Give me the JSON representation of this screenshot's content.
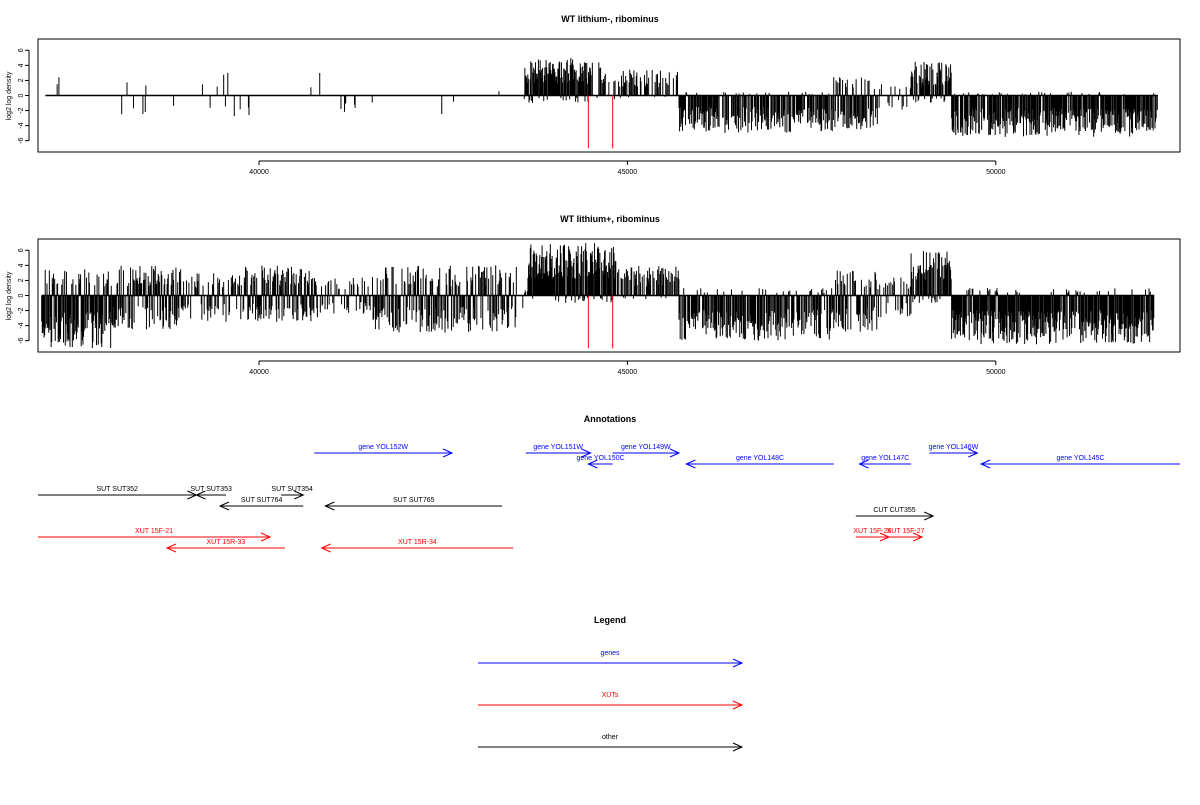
{
  "colors": {
    "gene": "#0000ff",
    "xut": "#ff0000",
    "other": "#000000",
    "marker": "#ff0000",
    "bars": "#000000"
  },
  "chart_data": [
    {
      "type": "bar",
      "title": "WT lithium-, ribominus",
      "ylabel": "log2 log density",
      "xlim": [
        37000,
        52500
      ],
      "ylim": [
        -7.5,
        7.5
      ],
      "xticks": [
        40000,
        45000,
        50000
      ],
      "yticks": [
        -6,
        -4,
        -2,
        0,
        2,
        4,
        6
      ],
      "marker_lines": [
        44470,
        44800
      ],
      "marker_depth": -7,
      "segments": [
        {
          "start": 37100,
          "end": 37300,
          "density": 0.1,
          "up": 3.0,
          "down": -1.5
        },
        {
          "start": 37300,
          "end": 38000,
          "density": 0.04,
          "up": 3.0,
          "down": -2.5
        },
        {
          "start": 38000,
          "end": 39000,
          "density": 0.05,
          "up": 3.0,
          "down": -3.0
        },
        {
          "start": 39000,
          "end": 40000,
          "density": 0.03,
          "up": 3.5,
          "down": -3.5
        },
        {
          "start": 40000,
          "end": 41000,
          "density": 0.03,
          "up": 3.0,
          "down": -2.5
        },
        {
          "start": 41000,
          "end": 42000,
          "density": 0.04,
          "up": 1.5,
          "down": -3.0
        },
        {
          "start": 42000,
          "end": 43000,
          "density": 0.03,
          "up": 1.0,
          "down": -2.5
        },
        {
          "start": 43000,
          "end": 43600,
          "density": 0.05,
          "up": 1.0,
          "down": -3.0
        },
        {
          "start": 43600,
          "end": 44500,
          "density": 1.0,
          "up": 5.0,
          "down": -1.0
        },
        {
          "start": 44500,
          "end": 44800,
          "density": 0.35,
          "up": 4.5,
          "down": -0.5
        },
        {
          "start": 44800,
          "end": 45700,
          "density": 0.5,
          "up": 3.5,
          "down": -0.5
        },
        {
          "start": 45700,
          "end": 47800,
          "density": 0.75,
          "up": 0.5,
          "down": -5.0
        },
        {
          "start": 47800,
          "end": 48400,
          "density": 0.8,
          "up": 2.5,
          "down": -4.5
        },
        {
          "start": 48400,
          "end": 48850,
          "density": 0.3,
          "up": 1.5,
          "down": -2.0
        },
        {
          "start": 48850,
          "end": 49400,
          "density": 0.9,
          "up": 4.5,
          "down": -1.0
        },
        {
          "start": 49400,
          "end": 52200,
          "density": 0.9,
          "up": 0.5,
          "down": -5.5
        }
      ]
    },
    {
      "type": "bar",
      "title": "WT lithium+, ribominus",
      "ylabel": "log2 log density",
      "xlim": [
        37000,
        52500
      ],
      "ylim": [
        -7.5,
        7.5
      ],
      "xticks": [
        40000,
        45000,
        50000
      ],
      "yticks": [
        -6,
        -4,
        -2,
        0,
        2,
        4,
        6
      ],
      "marker_lines": [
        44470,
        44800
      ],
      "marker_depth": -7,
      "segments": [
        {
          "start": 37050,
          "end": 38000,
          "density": 1.0,
          "up": 3.5,
          "down": -7.0
        },
        {
          "start": 38000,
          "end": 39000,
          "density": 0.9,
          "up": 4.0,
          "down": -4.5
        },
        {
          "start": 39000,
          "end": 39800,
          "density": 0.6,
          "up": 3.0,
          "down": -3.5
        },
        {
          "start": 39800,
          "end": 40800,
          "density": 0.9,
          "up": 4.0,
          "down": -3.5
        },
        {
          "start": 40800,
          "end": 41500,
          "density": 0.35,
          "up": 2.5,
          "down": -2.5
        },
        {
          "start": 41500,
          "end": 43500,
          "density": 0.8,
          "up": 4.0,
          "down": -5.0
        },
        {
          "start": 43500,
          "end": 43650,
          "density": 0.2,
          "up": 1.0,
          "down": -2.0
        },
        {
          "start": 43650,
          "end": 44850,
          "density": 1.0,
          "up": 7.0,
          "down": -1.0
        },
        {
          "start": 44850,
          "end": 45700,
          "density": 0.5,
          "up": 4.0,
          "down": -0.5
        },
        {
          "start": 45700,
          "end": 47800,
          "density": 0.75,
          "up": 1.0,
          "down": -6.0
        },
        {
          "start": 47800,
          "end": 48400,
          "density": 0.8,
          "up": 3.5,
          "down": -5.0
        },
        {
          "start": 48400,
          "end": 48850,
          "density": 0.5,
          "up": 2.5,
          "down": -3.0
        },
        {
          "start": 48850,
          "end": 49400,
          "density": 0.9,
          "up": 6.0,
          "down": -1.0
        },
        {
          "start": 49400,
          "end": 52150,
          "density": 0.95,
          "up": 1.0,
          "down": -6.5
        }
      ]
    },
    {
      "type": "other",
      "title": "Annotations",
      "xlim": [
        37000,
        52500
      ],
      "features": [
        {
          "label": "gene YOL152W",
          "kind": "gene",
          "start": 40750,
          "end": 42620,
          "row": 0
        },
        {
          "label": "gene YOL151W",
          "kind": "gene",
          "start": 43620,
          "end": 44500,
          "row": 0
        },
        {
          "label": "gene YOL150C",
          "kind": "gene",
          "start": 44470,
          "end": 44800,
          "row": 1
        },
        {
          "label": "gene YOL149W",
          "kind": "gene",
          "start": 44800,
          "end": 45700,
          "row": 0
        },
        {
          "label": "gene YOL148C",
          "kind": "gene",
          "start": 45800,
          "end": 47800,
          "row": 1
        },
        {
          "label": "gene YOL147C",
          "kind": "gene",
          "start": 48150,
          "end": 48850,
          "row": 1
        },
        {
          "label": "gene YOL146W",
          "kind": "gene",
          "start": 49100,
          "end": 49750,
          "row": 0
        },
        {
          "label": "gene YOL145C",
          "kind": "gene",
          "start": 49800,
          "end": 52500,
          "row": 1
        },
        {
          "label": "SUT SUT352",
          "kind": "other",
          "start": 37000,
          "end": 39150,
          "row": 3
        },
        {
          "label": "SUT SUT353",
          "kind": "other",
          "start": 39150,
          "end": 39550,
          "row": 3
        },
        {
          "label": "SUT SUT764",
          "kind": "other",
          "start": 39470,
          "end": 40600,
          "row": 4
        },
        {
          "label": "SUT SUT354",
          "kind": "other",
          "start": 40300,
          "end": 40600,
          "row": 3
        },
        {
          "label": "SUT SUT765",
          "kind": "other",
          "start": 40900,
          "end": 43300,
          "row": 4
        },
        {
          "label": "CUT CUT355",
          "kind": "other",
          "start": 48100,
          "end": 49150,
          "row": 5
        },
        {
          "label": "XUT 15F-21",
          "kind": "xut",
          "start": 37000,
          "end": 40150,
          "row": 7
        },
        {
          "label": "XUT 15R-33",
          "kind": "xut",
          "start": 38750,
          "end": 40350,
          "row": 8
        },
        {
          "label": "XUT 15R-34",
          "kind": "xut",
          "start": 40850,
          "end": 43450,
          "row": 8
        },
        {
          "label": "XUT 15F-26",
          "kind": "xut",
          "start": 48100,
          "end": 48550,
          "row": 6
        },
        {
          "label": "XUT 15F-27",
          "kind": "xut",
          "start": 48550,
          "end": 49000,
          "row": 6
        }
      ]
    },
    {
      "type": "other",
      "title": "Legend",
      "entries": [
        {
          "label": "genes",
          "kind": "gene"
        },
        {
          "label": "XUTs",
          "kind": "xut"
        },
        {
          "label": "other",
          "kind": "other"
        }
      ]
    }
  ]
}
